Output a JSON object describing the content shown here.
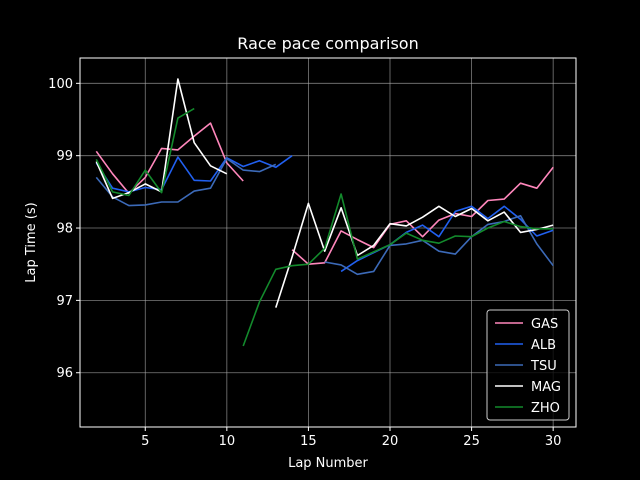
{
  "chart_data": {
    "type": "line",
    "title": "Race pace comparison",
    "xlabel": "Lap Number",
    "ylabel": "Lap Time (s)",
    "xlim": [
      1.0,
      31.4
    ],
    "ylim": [
      95.25,
      100.35
    ],
    "xticks": [
      5,
      10,
      15,
      20,
      25,
      30
    ],
    "yticks": [
      96,
      97,
      98,
      99,
      100
    ],
    "grid": true,
    "legend_position": "lower right",
    "series": [
      {
        "name": "GAS",
        "color": "#ff87bc",
        "segments": [
          [
            [
              2,
              99.06
            ],
            [
              3,
              98.75
            ],
            [
              4,
              98.48
            ],
            [
              5,
              98.7
            ],
            [
              6,
              99.1
            ],
            [
              7,
              99.08
            ],
            [
              8,
              99.27
            ],
            [
              9,
              99.45
            ],
            [
              10,
              98.9
            ],
            [
              11,
              98.65
            ]
          ],
          [
            [
              14,
              97.7
            ],
            [
              15,
              97.5
            ],
            [
              16,
              97.52
            ],
            [
              17,
              97.96
            ],
            [
              18,
              97.84
            ],
            [
              19,
              97.73
            ],
            [
              20,
              98.05
            ],
            [
              21,
              98.1
            ],
            [
              22,
              97.88
            ],
            [
              23,
              98.11
            ],
            [
              24,
              98.2
            ],
            [
              25,
              98.16
            ],
            [
              26,
              98.38
            ],
            [
              27,
              98.4
            ],
            [
              28,
              98.62
            ],
            [
              29,
              98.55
            ],
            [
              30,
              98.84
            ]
          ]
        ]
      },
      {
        "name": "ALB",
        "color": "#2160f0",
        "segments": [
          [
            [
              2,
              98.9
            ],
            [
              3,
              98.55
            ],
            [
              4,
              98.5
            ],
            [
              5,
              98.56
            ],
            [
              6,
              98.53
            ],
            [
              7,
              98.98
            ],
            [
              8,
              98.66
            ],
            [
              9,
              98.65
            ],
            [
              10,
              98.97
            ],
            [
              11,
              98.85
            ],
            [
              12,
              98.93
            ],
            [
              13,
              98.84
            ],
            [
              14,
              99.0
            ]
          ],
          [
            [
              17,
              97.4
            ],
            [
              18,
              97.55
            ],
            [
              19,
              97.66
            ],
            [
              20,
              97.77
            ],
            [
              21,
              97.94
            ],
            [
              22,
              98.04
            ],
            [
              23,
              97.88
            ],
            [
              24,
              98.23
            ],
            [
              25,
              98.3
            ],
            [
              26,
              98.13
            ],
            [
              27,
              98.3
            ],
            [
              28,
              98.12
            ],
            [
              29,
              97.89
            ],
            [
              30,
              97.97
            ]
          ]
        ]
      },
      {
        "name": "TSU",
        "color": "#3c6ab8",
        "segments": [
          [
            [
              2,
              98.7
            ],
            [
              3,
              98.43
            ],
            [
              4,
              98.31
            ],
            [
              5,
              98.32
            ],
            [
              6,
              98.36
            ],
            [
              7,
              98.36
            ],
            [
              8,
              98.51
            ],
            [
              9,
              98.55
            ],
            [
              10,
              98.96
            ],
            [
              11,
              98.8
            ],
            [
              12,
              98.78
            ],
            [
              13,
              98.88
            ]
          ],
          [
            [
              16,
              97.53
            ],
            [
              17,
              97.49
            ],
            [
              18,
              97.36
            ],
            [
              19,
              97.4
            ],
            [
              20,
              97.76
            ],
            [
              21,
              97.78
            ],
            [
              22,
              97.83
            ],
            [
              23,
              97.68
            ],
            [
              24,
              97.64
            ],
            [
              25,
              97.88
            ],
            [
              26,
              98.05
            ],
            [
              27,
              98.09
            ],
            [
              28,
              98.17
            ],
            [
              29,
              97.78
            ],
            [
              30,
              97.48
            ]
          ]
        ]
      },
      {
        "name": "MAG",
        "color": "#ffffff",
        "segments": [
          [
            [
              2,
              98.92
            ],
            [
              3,
              98.41
            ],
            [
              4,
              98.49
            ],
            [
              5,
              98.61
            ],
            [
              6,
              98.5
            ],
            [
              7,
              100.06
            ],
            [
              8,
              99.18
            ],
            [
              9,
              98.86
            ],
            [
              10,
              98.75
            ]
          ],
          [
            [
              13,
              96.9
            ],
            [
              14,
              97.6
            ],
            [
              15,
              98.34
            ],
            [
              16,
              97.68
            ],
            [
              17,
              98.28
            ],
            [
              18,
              97.62
            ],
            [
              19,
              97.76
            ],
            [
              20,
              98.06
            ],
            [
              21,
              98.03
            ],
            [
              22,
              98.15
            ],
            [
              23,
              98.3
            ],
            [
              24,
              98.16
            ],
            [
              25,
              98.27
            ],
            [
              26,
              98.1
            ],
            [
              27,
              98.22
            ],
            [
              28,
              97.94
            ],
            [
              29,
              97.98
            ],
            [
              30,
              98.04
            ]
          ]
        ]
      },
      {
        "name": "ZHO",
        "color": "#138a2c",
        "segments": [
          [
            [
              2,
              98.95
            ],
            [
              3,
              98.5
            ],
            [
              4,
              98.45
            ],
            [
              5,
              98.8
            ],
            [
              6,
              98.49
            ],
            [
              7,
              99.52
            ],
            [
              8,
              99.65
            ]
          ],
          [
            [
              11,
              96.37
            ],
            [
              12,
              96.98
            ],
            [
              13,
              97.43
            ],
            [
              14,
              97.48
            ],
            [
              15,
              97.5
            ],
            [
              16,
              97.72
            ],
            [
              17,
              98.47
            ],
            [
              18,
              97.57
            ],
            [
              19,
              97.67
            ],
            [
              20,
              97.77
            ],
            [
              21,
              97.93
            ],
            [
              22,
              97.83
            ],
            [
              23,
              97.79
            ],
            [
              24,
              97.89
            ],
            [
              25,
              97.88
            ],
            [
              26,
              98.0
            ],
            [
              27,
              98.09
            ],
            [
              28,
              98.02
            ],
            [
              29,
              97.99
            ],
            [
              30,
              97.99
            ]
          ]
        ]
      }
    ]
  }
}
